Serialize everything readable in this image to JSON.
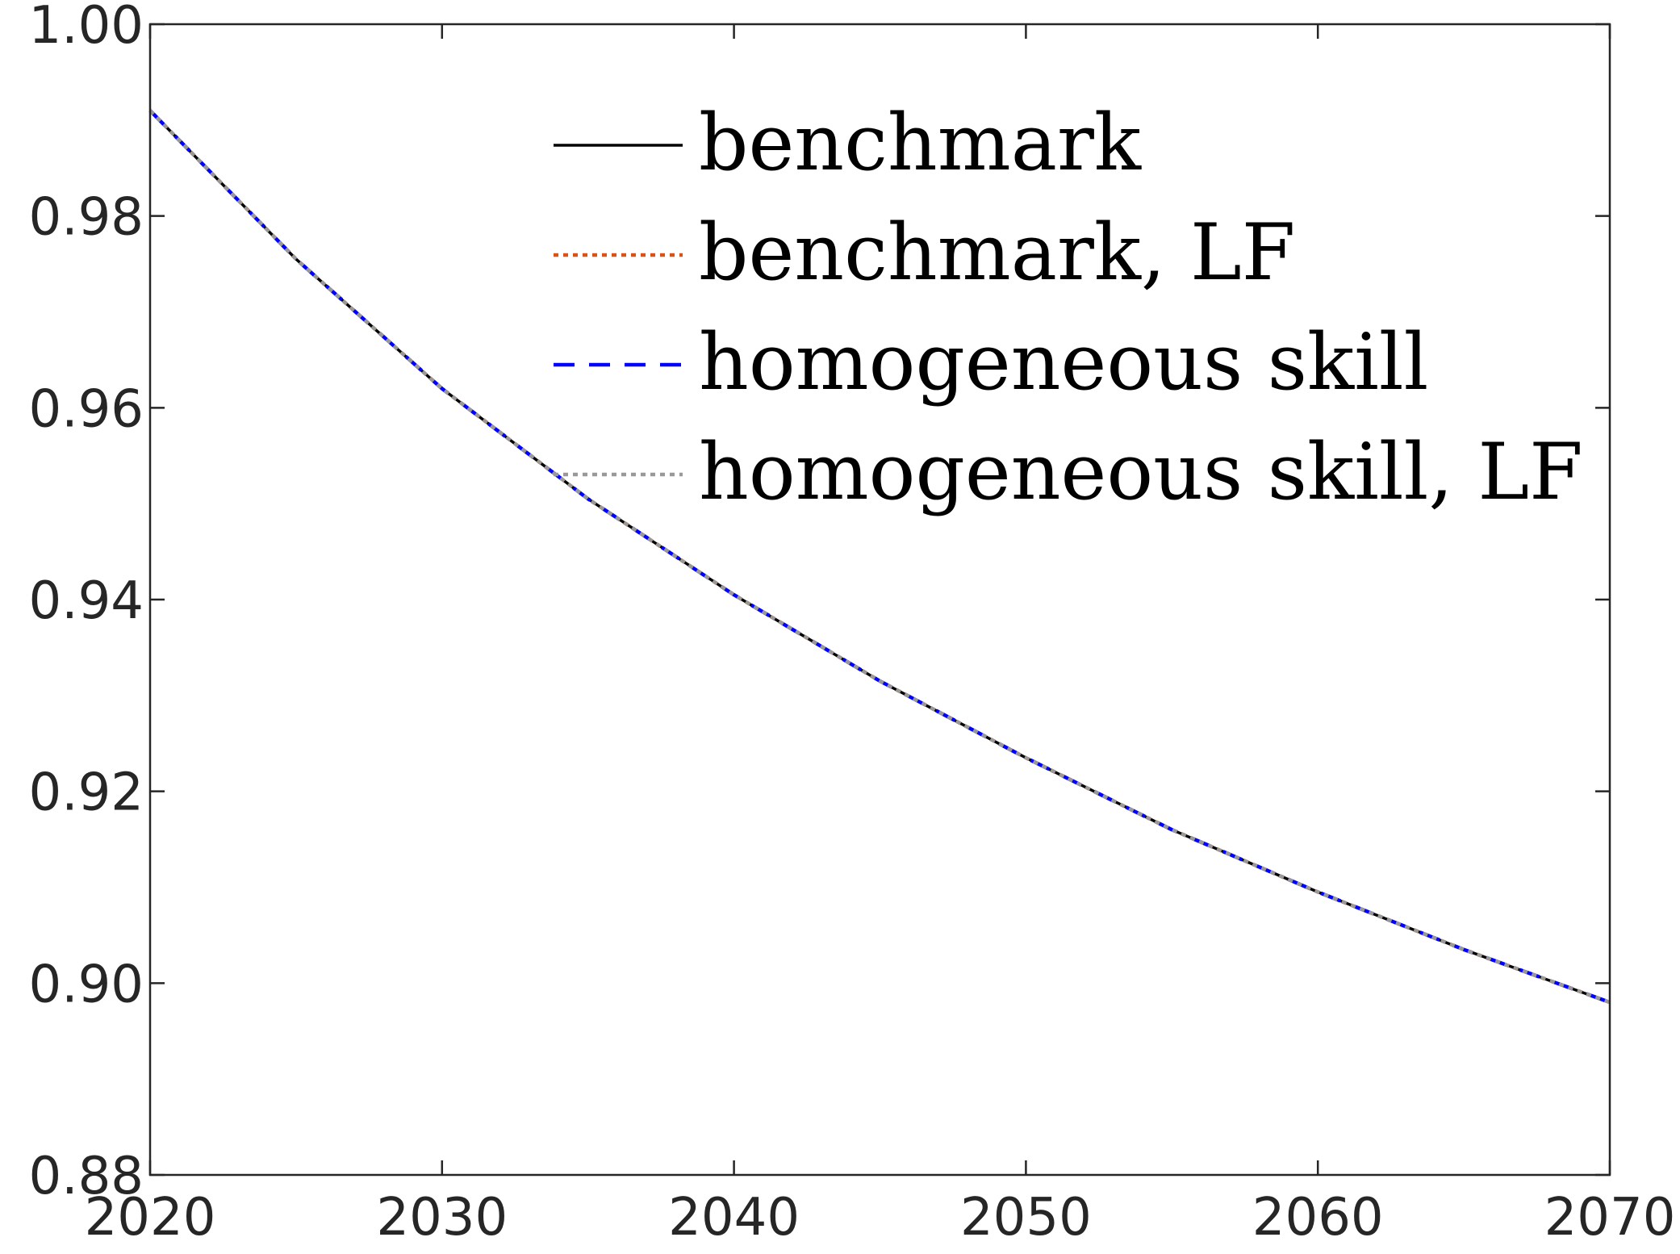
{
  "chart_data": {
    "type": "line",
    "title": "",
    "xlabel": "",
    "ylabel": "",
    "xlim": [
      2020,
      2070
    ],
    "ylim": [
      0.88,
      1.0
    ],
    "xticks": [
      2020,
      2030,
      2040,
      2050,
      2060,
      2070
    ],
    "yticks": [
      0.88,
      0.9,
      0.92,
      0.94,
      0.96,
      0.98,
      1.0
    ],
    "xtick_labels": [
      "2020",
      "2030",
      "2040",
      "2050",
      "2060",
      "2070"
    ],
    "ytick_labels": [
      "0.88",
      "0.90",
      "0.92",
      "0.94",
      "0.96",
      "0.98",
      "1.00"
    ],
    "grid": false,
    "legend_position": "top-right",
    "x": [
      2020,
      2025,
      2030,
      2035,
      2040,
      2045,
      2050,
      2055,
      2060,
      2065,
      2070
    ],
    "series": [
      {
        "name": "benchmark",
        "color": "#000000",
        "style": "solid",
        "values": [
          0.991,
          0.9755,
          0.962,
          0.9505,
          0.9405,
          0.9315,
          0.9235,
          0.916,
          0.9095,
          0.9035,
          0.898
        ]
      },
      {
        "name": "benchmark, LF",
        "color": "#D95319",
        "style": "dotted",
        "values": [
          0.991,
          0.9755,
          0.962,
          0.9505,
          0.9405,
          0.9315,
          0.9235,
          0.916,
          0.9095,
          0.9035,
          0.898
        ]
      },
      {
        "name": "homogeneous skill",
        "color": "#0000FF",
        "style": "dashed",
        "values": [
          0.991,
          0.9755,
          0.962,
          0.9505,
          0.9405,
          0.9315,
          0.9235,
          0.916,
          0.9095,
          0.9035,
          0.898
        ]
      },
      {
        "name": "homogeneous skill, LF",
        "color": "#999999",
        "style": "dotted",
        "values": [
          0.991,
          0.9755,
          0.962,
          0.9505,
          0.9405,
          0.9315,
          0.9235,
          0.916,
          0.9095,
          0.9035,
          0.898
        ]
      }
    ]
  }
}
